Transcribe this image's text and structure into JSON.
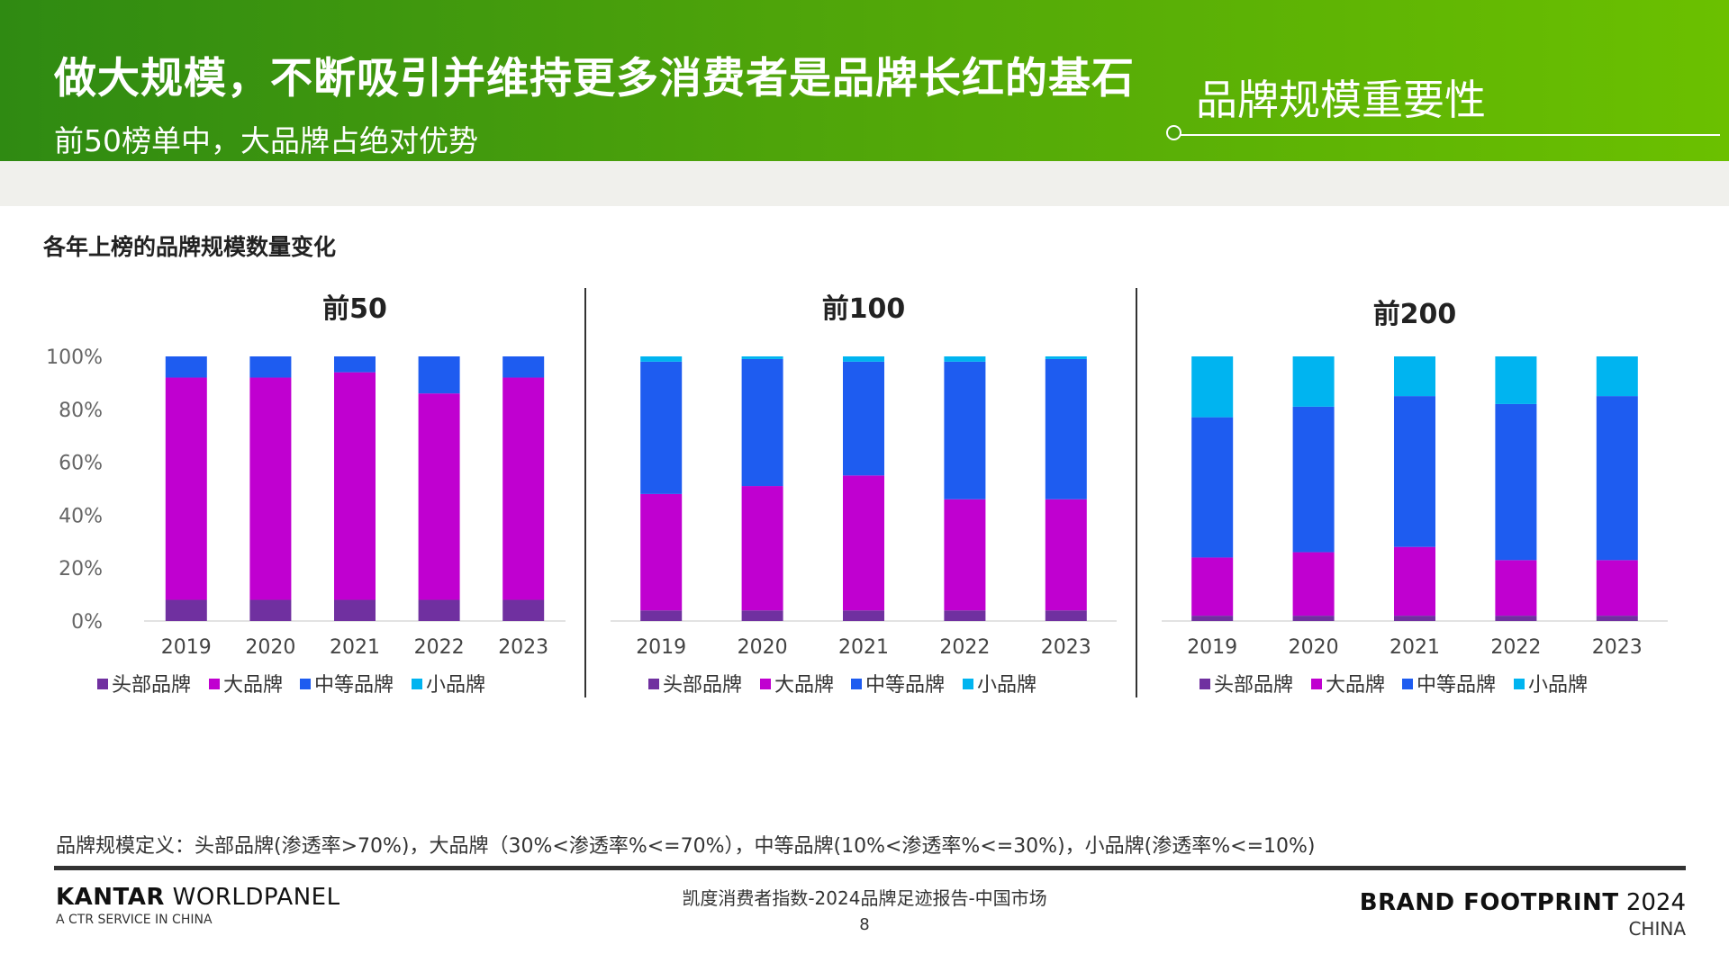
{
  "header": {
    "title": "做大规模，不断吸引并维持更多消费者是品牌长红的基石",
    "subtitle": "前50榜单中，大品牌占绝对优势",
    "section": "品牌规模重要性"
  },
  "chart_heading": "各年上榜的品牌规模数量变化",
  "chart_data": [
    {
      "type": "bar",
      "stacked": true,
      "title": "前50",
      "categories": [
        "2019",
        "2020",
        "2021",
        "2022",
        "2023"
      ],
      "ylim": [
        0,
        100
      ],
      "yticks": [
        "0%",
        "20%",
        "40%",
        "60%",
        "80%",
        "100%"
      ],
      "series": [
        {
          "name": "头部品牌",
          "color": "#7030a0",
          "values": [
            8,
            8,
            8,
            8,
            8
          ]
        },
        {
          "name": "大品牌",
          "color": "#c000d0",
          "values": [
            84,
            84,
            86,
            78,
            84
          ]
        },
        {
          "name": "中等品牌",
          "color": "#1e5cf0",
          "values": [
            8,
            8,
            6,
            14,
            8
          ]
        },
        {
          "name": "小品牌",
          "color": "#00b4f0",
          "values": [
            0,
            0,
            0,
            0,
            0
          ]
        }
      ]
    },
    {
      "type": "bar",
      "stacked": true,
      "title": "前100",
      "categories": [
        "2019",
        "2020",
        "2021",
        "2022",
        "2023"
      ],
      "ylim": [
        0,
        100
      ],
      "series": [
        {
          "name": "头部品牌",
          "color": "#7030a0",
          "values": [
            4,
            4,
            4,
            4,
            4
          ]
        },
        {
          "name": "大品牌",
          "color": "#c000d0",
          "values": [
            44,
            47,
            51,
            42,
            42
          ]
        },
        {
          "name": "中等品牌",
          "color": "#1e5cf0",
          "values": [
            50,
            48,
            43,
            52,
            53
          ]
        },
        {
          "name": "小品牌",
          "color": "#00b4f0",
          "values": [
            2,
            1,
            2,
            2,
            1
          ]
        }
      ]
    },
    {
      "type": "bar",
      "stacked": true,
      "title": "前200",
      "categories": [
        "2019",
        "2020",
        "2021",
        "2022",
        "2023"
      ],
      "ylim": [
        0,
        100
      ],
      "series": [
        {
          "name": "头部品牌",
          "color": "#7030a0",
          "values": [
            2,
            2,
            2,
            2,
            2
          ]
        },
        {
          "name": "大品牌",
          "color": "#c000d0",
          "values": [
            22,
            24,
            26,
            21,
            21
          ]
        },
        {
          "name": "中等品牌",
          "color": "#1e5cf0",
          "values": [
            53,
            55,
            57,
            59,
            62
          ]
        },
        {
          "name": "小品牌",
          "color": "#00b4f0",
          "values": [
            23,
            19,
            15,
            18,
            15
          ]
        }
      ]
    }
  ],
  "definition": "品牌规模定义：头部品牌(渗透率>70%)，大品牌（30%<渗透率%<=70%），中等品牌(10%<渗透率%<=30%)，小品牌(渗透率%<=10%)",
  "footer": {
    "logo_bold": "KANTAR",
    "logo_rest": "WORLDPANEL",
    "logo_sub": "A CTR SERVICE IN CHINA",
    "center_text": "凯度消费者指数-2024品牌足迹报告-中国市场",
    "page": "8",
    "brand_bold": "BRAND FOOTPRINT",
    "brand_year": "2024",
    "brand_region": "CHINA"
  }
}
